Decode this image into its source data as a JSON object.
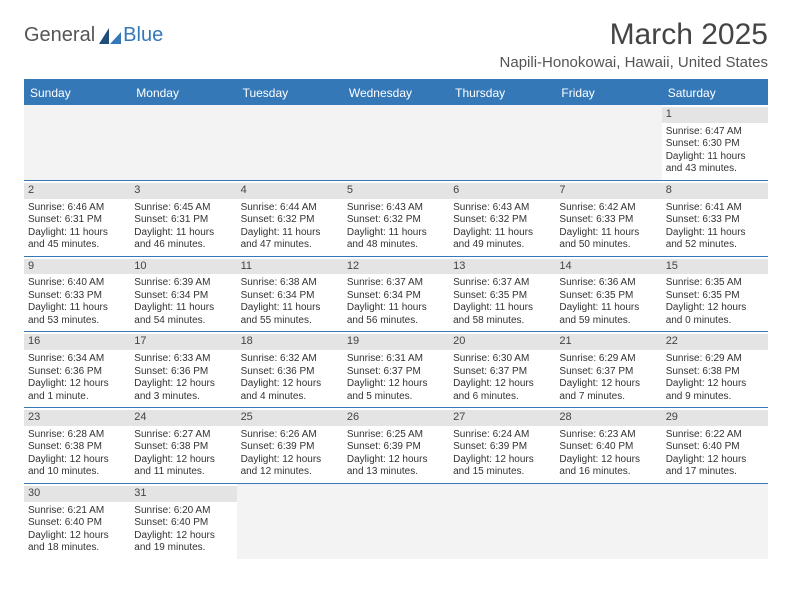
{
  "brand": {
    "part1": "General",
    "part2": "Blue"
  },
  "title": "March 2025",
  "location": "Napili-Honokowai, Hawaii, United States",
  "colors": {
    "accent": "#3478b8",
    "header_text": "#ffffff",
    "daynum_bg": "#e4e4e4",
    "empty_bg": "#f3f3f3",
    "text": "#333333",
    "background": "#ffffff"
  },
  "weekdays": [
    "Sunday",
    "Monday",
    "Tuesday",
    "Wednesday",
    "Thursday",
    "Friday",
    "Saturday"
  ],
  "calendar": {
    "type": "table",
    "columns": 7,
    "cell_font_size": 10,
    "header_font_size": 12
  },
  "weeks": [
    [
      {
        "blank": true
      },
      {
        "blank": true
      },
      {
        "blank": true
      },
      {
        "blank": true
      },
      {
        "blank": true
      },
      {
        "blank": true
      },
      {
        "day": "1",
        "sunrise": "Sunrise: 6:47 AM",
        "sunset": "Sunset: 6:30 PM",
        "dl1": "Daylight: 11 hours",
        "dl2": "and 43 minutes."
      }
    ],
    [
      {
        "day": "2",
        "sunrise": "Sunrise: 6:46 AM",
        "sunset": "Sunset: 6:31 PM",
        "dl1": "Daylight: 11 hours",
        "dl2": "and 45 minutes."
      },
      {
        "day": "3",
        "sunrise": "Sunrise: 6:45 AM",
        "sunset": "Sunset: 6:31 PM",
        "dl1": "Daylight: 11 hours",
        "dl2": "and 46 minutes."
      },
      {
        "day": "4",
        "sunrise": "Sunrise: 6:44 AM",
        "sunset": "Sunset: 6:32 PM",
        "dl1": "Daylight: 11 hours",
        "dl2": "and 47 minutes."
      },
      {
        "day": "5",
        "sunrise": "Sunrise: 6:43 AM",
        "sunset": "Sunset: 6:32 PM",
        "dl1": "Daylight: 11 hours",
        "dl2": "and 48 minutes."
      },
      {
        "day": "6",
        "sunrise": "Sunrise: 6:43 AM",
        "sunset": "Sunset: 6:32 PM",
        "dl1": "Daylight: 11 hours",
        "dl2": "and 49 minutes."
      },
      {
        "day": "7",
        "sunrise": "Sunrise: 6:42 AM",
        "sunset": "Sunset: 6:33 PM",
        "dl1": "Daylight: 11 hours",
        "dl2": "and 50 minutes."
      },
      {
        "day": "8",
        "sunrise": "Sunrise: 6:41 AM",
        "sunset": "Sunset: 6:33 PM",
        "dl1": "Daylight: 11 hours",
        "dl2": "and 52 minutes."
      }
    ],
    [
      {
        "day": "9",
        "sunrise": "Sunrise: 6:40 AM",
        "sunset": "Sunset: 6:33 PM",
        "dl1": "Daylight: 11 hours",
        "dl2": "and 53 minutes."
      },
      {
        "day": "10",
        "sunrise": "Sunrise: 6:39 AM",
        "sunset": "Sunset: 6:34 PM",
        "dl1": "Daylight: 11 hours",
        "dl2": "and 54 minutes."
      },
      {
        "day": "11",
        "sunrise": "Sunrise: 6:38 AM",
        "sunset": "Sunset: 6:34 PM",
        "dl1": "Daylight: 11 hours",
        "dl2": "and 55 minutes."
      },
      {
        "day": "12",
        "sunrise": "Sunrise: 6:37 AM",
        "sunset": "Sunset: 6:34 PM",
        "dl1": "Daylight: 11 hours",
        "dl2": "and 56 minutes."
      },
      {
        "day": "13",
        "sunrise": "Sunrise: 6:37 AM",
        "sunset": "Sunset: 6:35 PM",
        "dl1": "Daylight: 11 hours",
        "dl2": "and 58 minutes."
      },
      {
        "day": "14",
        "sunrise": "Sunrise: 6:36 AM",
        "sunset": "Sunset: 6:35 PM",
        "dl1": "Daylight: 11 hours",
        "dl2": "and 59 minutes."
      },
      {
        "day": "15",
        "sunrise": "Sunrise: 6:35 AM",
        "sunset": "Sunset: 6:35 PM",
        "dl1": "Daylight: 12 hours",
        "dl2": "and 0 minutes."
      }
    ],
    [
      {
        "day": "16",
        "sunrise": "Sunrise: 6:34 AM",
        "sunset": "Sunset: 6:36 PM",
        "dl1": "Daylight: 12 hours",
        "dl2": "and 1 minute."
      },
      {
        "day": "17",
        "sunrise": "Sunrise: 6:33 AM",
        "sunset": "Sunset: 6:36 PM",
        "dl1": "Daylight: 12 hours",
        "dl2": "and 3 minutes."
      },
      {
        "day": "18",
        "sunrise": "Sunrise: 6:32 AM",
        "sunset": "Sunset: 6:36 PM",
        "dl1": "Daylight: 12 hours",
        "dl2": "and 4 minutes."
      },
      {
        "day": "19",
        "sunrise": "Sunrise: 6:31 AM",
        "sunset": "Sunset: 6:37 PM",
        "dl1": "Daylight: 12 hours",
        "dl2": "and 5 minutes."
      },
      {
        "day": "20",
        "sunrise": "Sunrise: 6:30 AM",
        "sunset": "Sunset: 6:37 PM",
        "dl1": "Daylight: 12 hours",
        "dl2": "and 6 minutes."
      },
      {
        "day": "21",
        "sunrise": "Sunrise: 6:29 AM",
        "sunset": "Sunset: 6:37 PM",
        "dl1": "Daylight: 12 hours",
        "dl2": "and 7 minutes."
      },
      {
        "day": "22",
        "sunrise": "Sunrise: 6:29 AM",
        "sunset": "Sunset: 6:38 PM",
        "dl1": "Daylight: 12 hours",
        "dl2": "and 9 minutes."
      }
    ],
    [
      {
        "day": "23",
        "sunrise": "Sunrise: 6:28 AM",
        "sunset": "Sunset: 6:38 PM",
        "dl1": "Daylight: 12 hours",
        "dl2": "and 10 minutes."
      },
      {
        "day": "24",
        "sunrise": "Sunrise: 6:27 AM",
        "sunset": "Sunset: 6:38 PM",
        "dl1": "Daylight: 12 hours",
        "dl2": "and 11 minutes."
      },
      {
        "day": "25",
        "sunrise": "Sunrise: 6:26 AM",
        "sunset": "Sunset: 6:39 PM",
        "dl1": "Daylight: 12 hours",
        "dl2": "and 12 minutes."
      },
      {
        "day": "26",
        "sunrise": "Sunrise: 6:25 AM",
        "sunset": "Sunset: 6:39 PM",
        "dl1": "Daylight: 12 hours",
        "dl2": "and 13 minutes."
      },
      {
        "day": "27",
        "sunrise": "Sunrise: 6:24 AM",
        "sunset": "Sunset: 6:39 PM",
        "dl1": "Daylight: 12 hours",
        "dl2": "and 15 minutes."
      },
      {
        "day": "28",
        "sunrise": "Sunrise: 6:23 AM",
        "sunset": "Sunset: 6:40 PM",
        "dl1": "Daylight: 12 hours",
        "dl2": "and 16 minutes."
      },
      {
        "day": "29",
        "sunrise": "Sunrise: 6:22 AM",
        "sunset": "Sunset: 6:40 PM",
        "dl1": "Daylight: 12 hours",
        "dl2": "and 17 minutes."
      }
    ],
    [
      {
        "day": "30",
        "sunrise": "Sunrise: 6:21 AM",
        "sunset": "Sunset: 6:40 PM",
        "dl1": "Daylight: 12 hours",
        "dl2": "and 18 minutes."
      },
      {
        "day": "31",
        "sunrise": "Sunrise: 6:20 AM",
        "sunset": "Sunset: 6:40 PM",
        "dl1": "Daylight: 12 hours",
        "dl2": "and 19 minutes."
      },
      {
        "blank": true
      },
      {
        "blank": true
      },
      {
        "blank": true
      },
      {
        "blank": true
      },
      {
        "blank": true
      }
    ]
  ]
}
